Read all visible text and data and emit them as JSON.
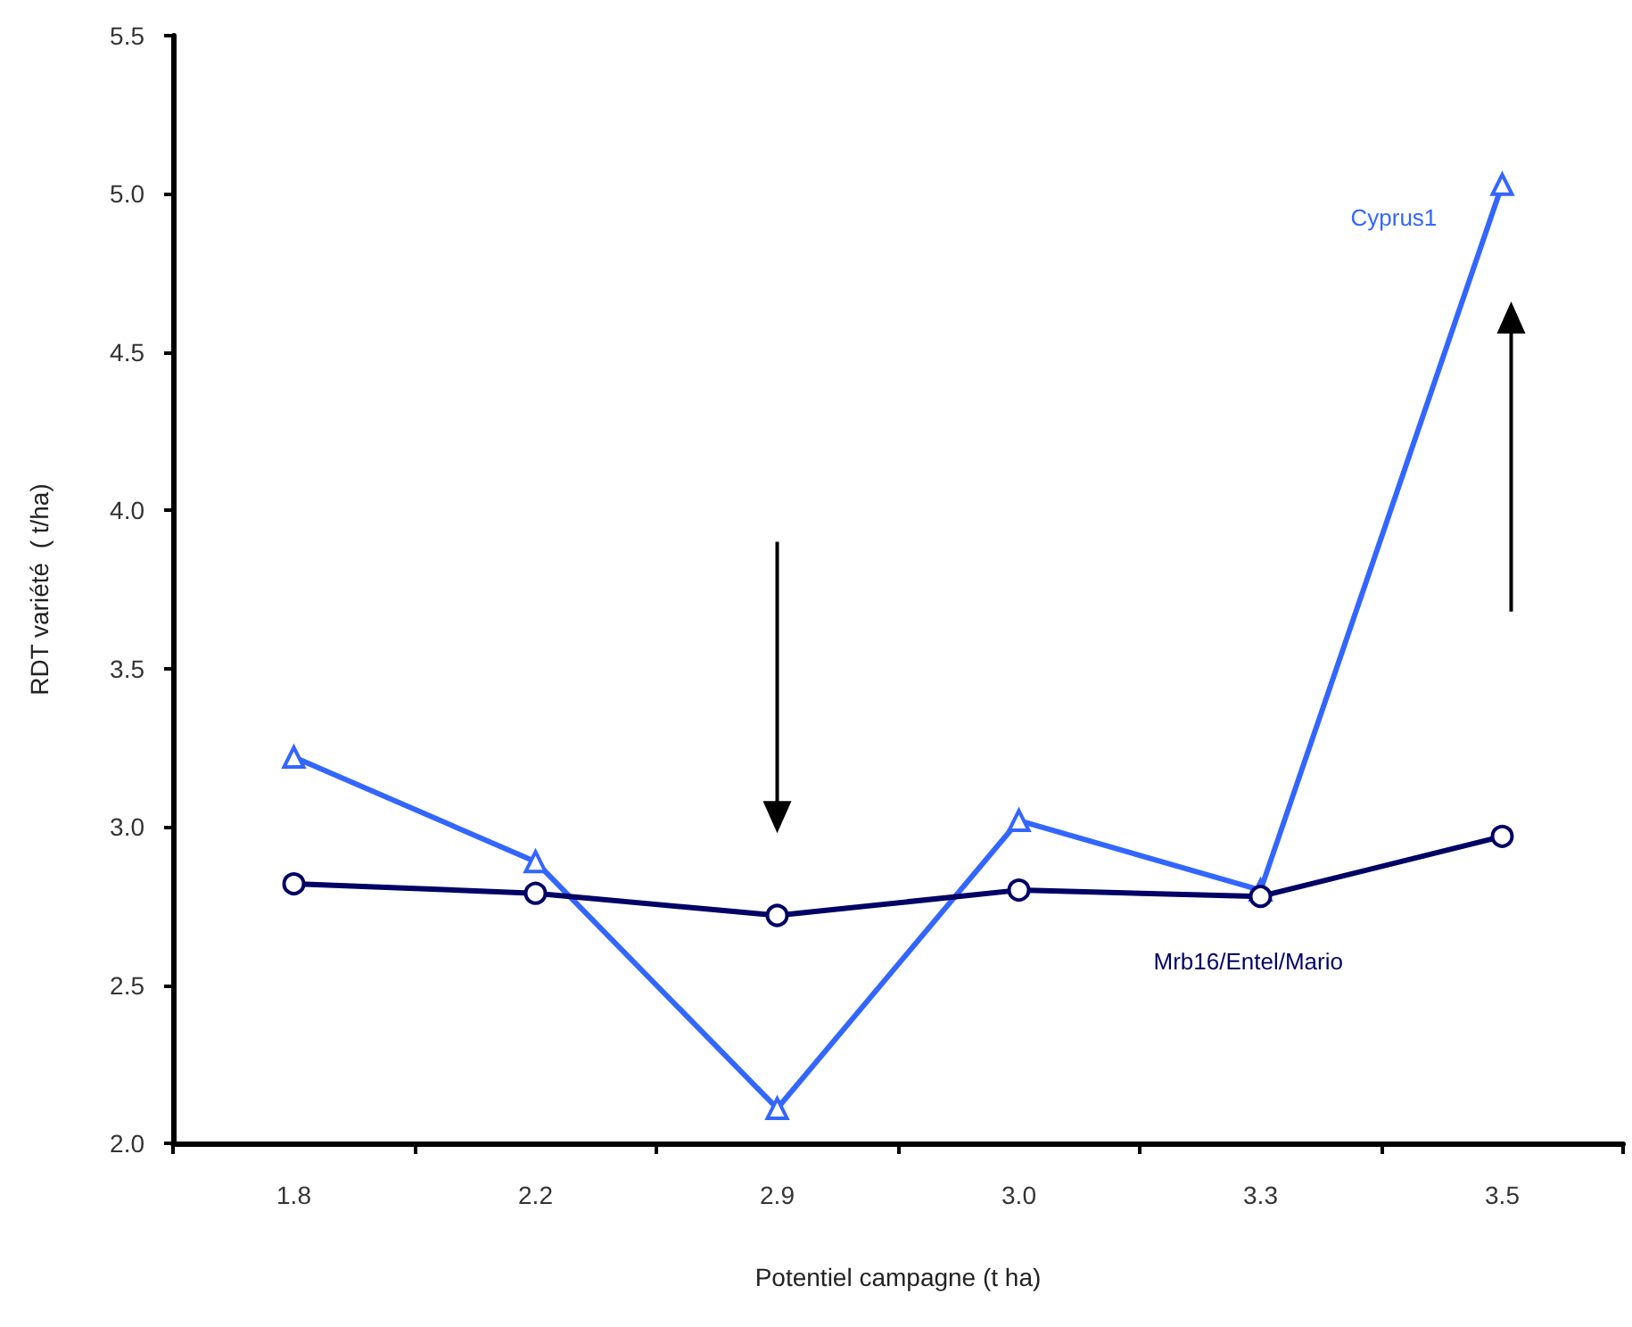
{
  "chart_data": {
    "type": "line",
    "xlabel": "Potentiel campagne (t ha)",
    "ylabel": "RDT variété  ( t/ha)",
    "categories": [
      "1.8",
      "2.2",
      "2.9",
      "3.0",
      "3.3",
      "3.5"
    ],
    "series": [
      {
        "name": "Cyprus1",
        "color": "#3366ff",
        "marker": "triangle",
        "values": [
          3.22,
          2.89,
          2.11,
          3.02,
          2.8,
          5.03
        ]
      },
      {
        "name": "Mrb16/Entel/Mario",
        "color": "#000066",
        "marker": "circle",
        "values": [
          2.82,
          2.79,
          2.72,
          2.8,
          2.78,
          2.97
        ]
      }
    ],
    "ylim": [
      2.0,
      5.5
    ],
    "yticks": [
      {
        "value": 2.0,
        "label": "2.0"
      },
      {
        "value": 2.5,
        "label": "2.5"
      },
      {
        "value": 3.0,
        "label": "3.0"
      },
      {
        "value": 3.5,
        "label": "3.5"
      },
      {
        "value": 4.0,
        "label": "4.0"
      },
      {
        "value": 4.5,
        "label": "4.5"
      },
      {
        "value": 5.0,
        "label": "5.0"
      },
      {
        "value": 5.5,
        "label": "5.5"
      }
    ],
    "grid": false,
    "legend": false
  }
}
